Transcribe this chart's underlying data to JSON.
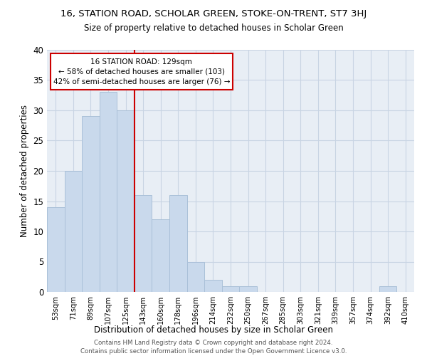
{
  "title1": "16, STATION ROAD, SCHOLAR GREEN, STOKE-ON-TRENT, ST7 3HJ",
  "title2": "Size of property relative to detached houses in Scholar Green",
  "xlabel": "Distribution of detached houses by size in Scholar Green",
  "ylabel": "Number of detached properties",
  "footer": "Contains HM Land Registry data © Crown copyright and database right 2024.\nContains public sector information licensed under the Open Government Licence v3.0.",
  "annotation_line1": "16 STATION ROAD: 129sqm",
  "annotation_line2": "← 58% of detached houses are smaller (103)",
  "annotation_line3": "42% of semi-detached houses are larger (76) →",
  "bar_color": "#c9d9ec",
  "bar_edge_color": "#aac0d8",
  "grid_color": "#c8d4e3",
  "bg_color": "#e8eef5",
  "line_color": "#cc0000",
  "annotation_box_color": "#cc0000",
  "categories": [
    "53sqm",
    "71sqm",
    "89sqm",
    "107sqm",
    "125sqm",
    "143sqm",
    "160sqm",
    "178sqm",
    "196sqm",
    "214sqm",
    "232sqm",
    "250sqm",
    "267sqm",
    "285sqm",
    "303sqm",
    "321sqm",
    "339sqm",
    "357sqm",
    "374sqm",
    "392sqm",
    "410sqm"
  ],
  "values": [
    14,
    20,
    29,
    33,
    30,
    16,
    12,
    16,
    5,
    2,
    1,
    1,
    0,
    0,
    0,
    0,
    0,
    0,
    0,
    1,
    0
  ],
  "property_line_x": 4.5,
  "ylim": [
    0,
    40
  ],
  "yticks": [
    0,
    5,
    10,
    15,
    20,
    25,
    30,
    35,
    40
  ]
}
